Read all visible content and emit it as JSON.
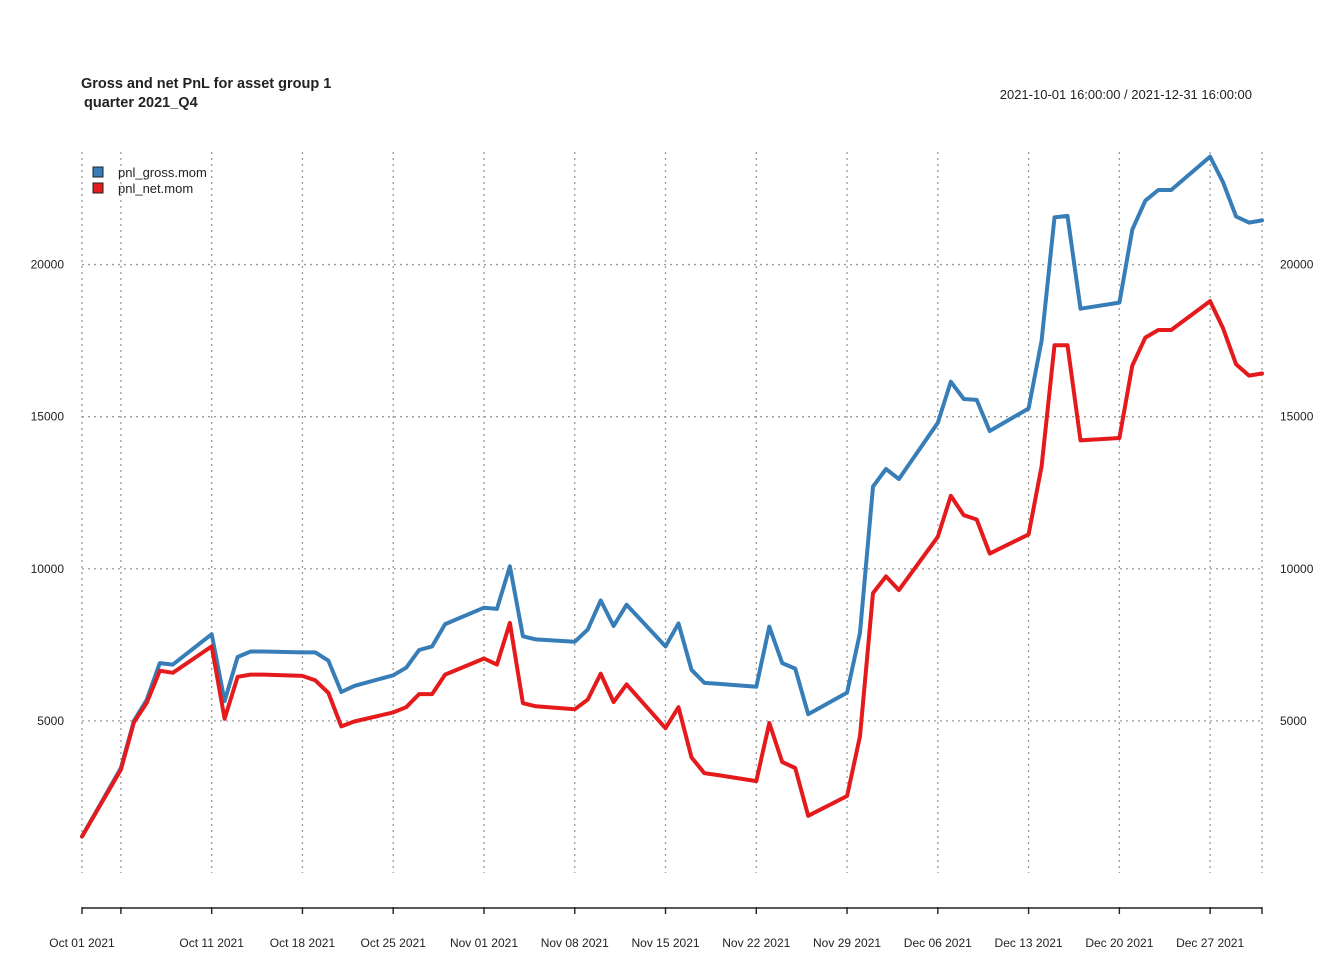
{
  "chart_data": {
    "type": "line",
    "title": "Gross and net PnL for asset group 1",
    "subtitle": "quarter 2021_Q4",
    "date_range": "2021-10-01 16:00:00 / 2021-12-31 16:00:00",
    "xlim": [
      "2021-10-01",
      "2021-12-31"
    ],
    "ylim": [
      0,
      23700
    ],
    "yticks": [
      5000,
      10000,
      15000,
      20000
    ],
    "xticks": [
      {
        "date": "2021-10-01",
        "label": "Oct 01 2021"
      },
      {
        "date": "2021-10-04",
        "label": ""
      },
      {
        "date": "2021-10-11",
        "label": "Oct 11 2021"
      },
      {
        "date": "2021-10-18",
        "label": "Oct 18 2021"
      },
      {
        "date": "2021-10-25",
        "label": "Oct 25 2021"
      },
      {
        "date": "2021-11-01",
        "label": "Nov 01 2021"
      },
      {
        "date": "2021-11-08",
        "label": "Nov 08 2021"
      },
      {
        "date": "2021-11-15",
        "label": "Nov 15 2021"
      },
      {
        "date": "2021-11-22",
        "label": "Nov 22 2021"
      },
      {
        "date": "2021-11-29",
        "label": "Nov 29 2021"
      },
      {
        "date": "2021-12-06",
        "label": "Dec 06 2021"
      },
      {
        "date": "2021-12-13",
        "label": "Dec 13 2021"
      },
      {
        "date": "2021-12-20",
        "label": "Dec 20 2021"
      },
      {
        "date": "2021-12-27",
        "label": "Dec 27 2021"
      },
      {
        "date": "2021-12-31",
        "label": ""
      }
    ],
    "grid": true,
    "legend_position": "top-left",
    "x": [
      "2021-10-01",
      "2021-10-04",
      "2021-10-05",
      "2021-10-06",
      "2021-10-07",
      "2021-10-08",
      "2021-10-11",
      "2021-10-12",
      "2021-10-13",
      "2021-10-14",
      "2021-10-15",
      "2021-10-18",
      "2021-10-19",
      "2021-10-20",
      "2021-10-21",
      "2021-10-22",
      "2021-10-25",
      "2021-10-26",
      "2021-10-27",
      "2021-10-28",
      "2021-10-29",
      "2021-11-01",
      "2021-11-02",
      "2021-11-03",
      "2021-11-04",
      "2021-11-05",
      "2021-11-08",
      "2021-11-09",
      "2021-11-10",
      "2021-11-11",
      "2021-11-12",
      "2021-11-15",
      "2021-11-16",
      "2021-11-17",
      "2021-11-18",
      "2021-11-19",
      "2021-11-22",
      "2021-11-23",
      "2021-11-24",
      "2021-11-25",
      "2021-11-26",
      "2021-11-29",
      "2021-11-30",
      "2021-12-01",
      "2021-12-02",
      "2021-12-03",
      "2021-12-06",
      "2021-12-07",
      "2021-12-08",
      "2021-12-09",
      "2021-12-10",
      "2021-12-13",
      "2021-12-14",
      "2021-12-15",
      "2021-12-16",
      "2021-12-17",
      "2021-12-20",
      "2021-12-21",
      "2021-12-22",
      "2021-12-23",
      "2021-12-24",
      "2021-12-27",
      "2021-12-28",
      "2021-12-29",
      "2021-12-30",
      "2021-12-31"
    ],
    "series": [
      {
        "name": "pnl_gross.mom",
        "color": "#377eb8",
        "values": [
          1200,
          3450,
          5000,
          5700,
          6900,
          6850,
          7850,
          5650,
          7100,
          7280,
          7280,
          7250,
          7250,
          6980,
          5950,
          6150,
          6500,
          6750,
          7330,
          7450,
          8180,
          8720,
          8680,
          10080,
          7780,
          7680,
          7600,
          8000,
          8960,
          8120,
          8820,
          7450,
          8200,
          6680,
          6250,
          6220,
          6120,
          8100,
          6900,
          6720,
          5220,
          5930,
          7900,
          12700,
          13280,
          12950,
          14800,
          16150,
          15580,
          15550,
          14530,
          15270,
          17500,
          21550,
          21600,
          18550,
          18750,
          21150,
          22100,
          22450,
          22450,
          23550,
          22700,
          21580,
          21380,
          21450
        ]
      },
      {
        "name": "pnl_net.mom",
        "color": "#e41a1c",
        "values": [
          1200,
          3400,
          4950,
          5600,
          6650,
          6580,
          7450,
          5070,
          6450,
          6520,
          6520,
          6480,
          6330,
          5920,
          4820,
          4980,
          5280,
          5450,
          5880,
          5880,
          6520,
          7050,
          6850,
          8220,
          5580,
          5480,
          5380,
          5700,
          6550,
          5620,
          6200,
          4760,
          5450,
          3800,
          3280,
          3220,
          3020,
          4930,
          3650,
          3450,
          1880,
          2530,
          4500,
          9200,
          9750,
          9300,
          11050,
          12400,
          11760,
          11620,
          10500,
          11130,
          13370,
          17350,
          17350,
          14220,
          14300,
          16680,
          17600,
          17850,
          17850,
          18800,
          17900,
          16720,
          16350,
          16420
        ]
      }
    ]
  }
}
